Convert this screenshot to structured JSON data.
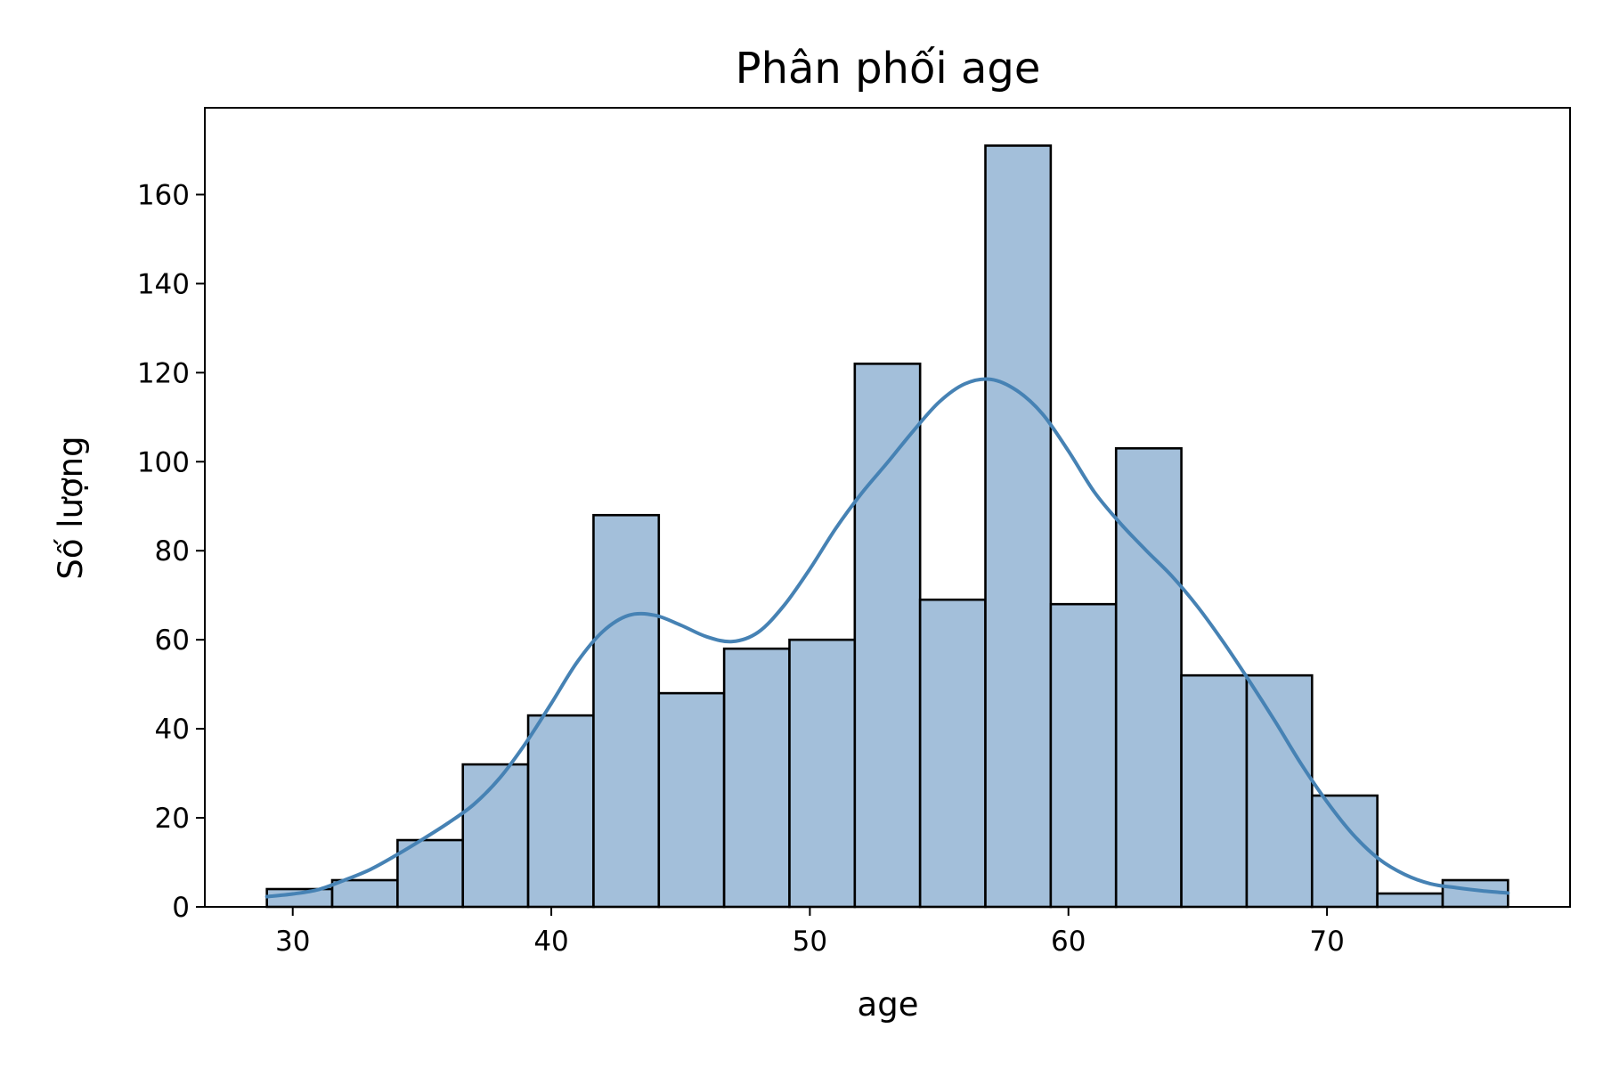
{
  "chart_data": {
    "type": "bar",
    "title": "Phân phối age",
    "xlabel": "age",
    "ylabel": "Số lượng",
    "xlim": [
      26.6,
      79.4
    ],
    "ylim": [
      0,
      179.5
    ],
    "xticks": [
      30,
      40,
      50,
      60,
      70
    ],
    "yticks": [
      0,
      20,
      40,
      60,
      80,
      100,
      120,
      140,
      160
    ],
    "grid": false,
    "bin_edges": [
      29,
      31.526,
      34.053,
      36.579,
      39.105,
      41.632,
      44.158,
      46.684,
      49.211,
      51.737,
      54.263,
      56.789,
      59.316,
      61.842,
      64.368,
      66.895,
      69.421,
      71.947,
      74.474,
      77
    ],
    "values": [
      4,
      6,
      15,
      32,
      43,
      88,
      48,
      58,
      60,
      122,
      69,
      171,
      68,
      103,
      52,
      52,
      25,
      3,
      6
    ],
    "kde": {
      "x": [
        29,
        30,
        31,
        32,
        33,
        34,
        35,
        36,
        37,
        38,
        39,
        40,
        41,
        42,
        43,
        44,
        45,
        46,
        47,
        48,
        49,
        50,
        51,
        52,
        53,
        54,
        55,
        56,
        57,
        58,
        59,
        60,
        61,
        62,
        63,
        64,
        65,
        66,
        67,
        68,
        69,
        70,
        71,
        72,
        73,
        74,
        75,
        76,
        77
      ],
      "y": [
        2.3,
        2.9,
        3.9,
        6,
        8.4,
        11.6,
        15.1,
        18.8,
        23,
        28.9,
        36.7,
        45.7,
        55,
        61.9,
        65.5,
        65.5,
        63.3,
        60.7,
        59.6,
        61.7,
        67.7,
        75.9,
        85,
        92.9,
        99.8,
        106.9,
        113.4,
        117.5,
        118.5,
        116,
        110.7,
        102.4,
        93.2,
        86.2,
        80.1,
        74.3,
        67.4,
        59.4,
        50.7,
        41.6,
        32.1,
        23.6,
        16.3,
        10.8,
        7.3,
        5.2,
        4.3,
        3.6,
        3.1
      ]
    },
    "colors": {
      "bar_fill": "#a3bfda",
      "bar_edge": "#000000",
      "kde_line": "#4682b4"
    }
  }
}
